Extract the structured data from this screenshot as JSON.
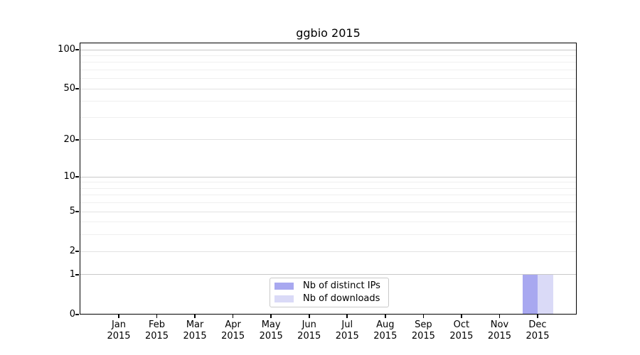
{
  "figure": {
    "background": "#ffffff"
  },
  "chart_data": {
    "type": "bar",
    "title": "ggbio 2015",
    "xlabel": "",
    "ylabel": "",
    "y_scale": "log1p",
    "ylim": [
      0,
      113
    ],
    "grid": "on",
    "legend_position": "bottom-center-inside",
    "categories": [
      "Jan 2015",
      "Feb 2015",
      "Mar 2015",
      "Apr 2015",
      "May 2015",
      "Jun 2015",
      "Jul 2015",
      "Aug 2015",
      "Sep 2015",
      "Oct 2015",
      "Nov 2015",
      "Dec 2015"
    ],
    "x_tick_labels": [
      {
        "month": "Jan",
        "year": "2015"
      },
      {
        "month": "Feb",
        "year": "2015"
      },
      {
        "month": "Mar",
        "year": "2015"
      },
      {
        "month": "Apr",
        "year": "2015"
      },
      {
        "month": "May",
        "year": "2015"
      },
      {
        "month": "Jun",
        "year": "2015"
      },
      {
        "month": "Jul",
        "year": "2015"
      },
      {
        "month": "Aug",
        "year": "2015"
      },
      {
        "month": "Sep",
        "year": "2015"
      },
      {
        "month": "Oct",
        "year": "2015"
      },
      {
        "month": "Nov",
        "year": "2015"
      },
      {
        "month": "Dec",
        "year": "2015"
      }
    ],
    "y_ticks": [
      0,
      1,
      2,
      5,
      10,
      20,
      50,
      100
    ],
    "gridlines": {
      "major": {
        "values": [
          1,
          10,
          100
        ],
        "color": "#c8c8c8"
      },
      "mid": {
        "values": [
          2,
          5,
          20,
          50
        ],
        "color": "#e2e2e2"
      },
      "minor": {
        "values": [
          3,
          4,
          6,
          7,
          8,
          9,
          30,
          40,
          60,
          70,
          80,
          90
        ],
        "color": "#efefef"
      }
    },
    "series": [
      {
        "name": "Nb of distinct IPs",
        "color": "#a8a8f0",
        "values": [
          0,
          0,
          0,
          0,
          0,
          0,
          0,
          0,
          0,
          0,
          0,
          1
        ]
      },
      {
        "name": "Nb of downloads",
        "color": "#dadaf7",
        "values": [
          0,
          0,
          0,
          0,
          0,
          0,
          0,
          0,
          0,
          0,
          0,
          1
        ]
      }
    ]
  }
}
